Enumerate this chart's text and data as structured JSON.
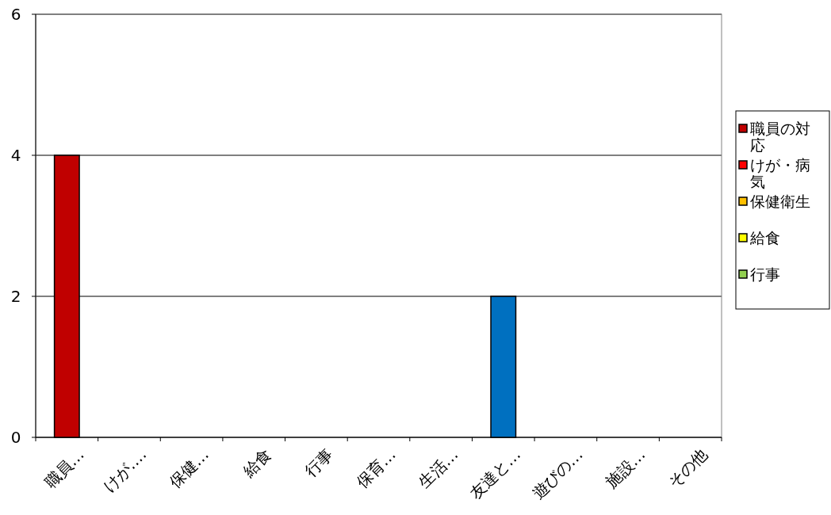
{
  "chart_data": {
    "type": "bar",
    "categories": [
      "職員…",
      "けが….",
      "保健…",
      "給食",
      "行事",
      "保育…",
      "生活…",
      "友達と…",
      "遊びの…",
      "施設…",
      "その他"
    ],
    "series": [
      {
        "name": "職員の対応",
        "color": "#c00000",
        "values": [
          4,
          null,
          null,
          null,
          null,
          null,
          null,
          null,
          null,
          null,
          null
        ]
      },
      {
        "name": "けが・病気",
        "color": "#ff0000",
        "values": [
          null,
          0,
          null,
          null,
          null,
          null,
          null,
          null,
          null,
          null,
          null
        ]
      },
      {
        "name": "保健衛生",
        "color": "#ffc000",
        "values": [
          null,
          null,
          0,
          null,
          null,
          null,
          null,
          null,
          null,
          null,
          null
        ]
      },
      {
        "name": "給食",
        "color": "#ffff00",
        "values": [
          null,
          null,
          null,
          0,
          null,
          null,
          null,
          null,
          null,
          null,
          null
        ]
      },
      {
        "name": "行事",
        "color": "#92d050",
        "values": [
          null,
          null,
          null,
          null,
          0,
          null,
          null,
          null,
          null,
          null,
          null
        ]
      },
      {
        "values": [
          null,
          null,
          null,
          null,
          null,
          0,
          null,
          null,
          null,
          null,
          null
        ]
      },
      {
        "values": [
          null,
          null,
          null,
          null,
          null,
          null,
          0,
          null,
          null,
          null,
          null
        ]
      },
      {
        "color": "#0070c0",
        "values": [
          null,
          null,
          null,
          null,
          null,
          null,
          null,
          2,
          null,
          null,
          null
        ]
      },
      {
        "values": [
          null,
          null,
          null,
          null,
          null,
          null,
          null,
          null,
          0,
          null,
          null
        ]
      },
      {
        "values": [
          null,
          null,
          null,
          null,
          null,
          null,
          null,
          null,
          null,
          0,
          null
        ]
      },
      {
        "values": [
          null,
          null,
          null,
          null,
          null,
          null,
          null,
          null,
          null,
          null,
          0
        ]
      }
    ],
    "ylim": [
      0,
      6
    ],
    "yticks": [
      0,
      2,
      4,
      6
    ],
    "grid": "y",
    "legend": "right"
  }
}
